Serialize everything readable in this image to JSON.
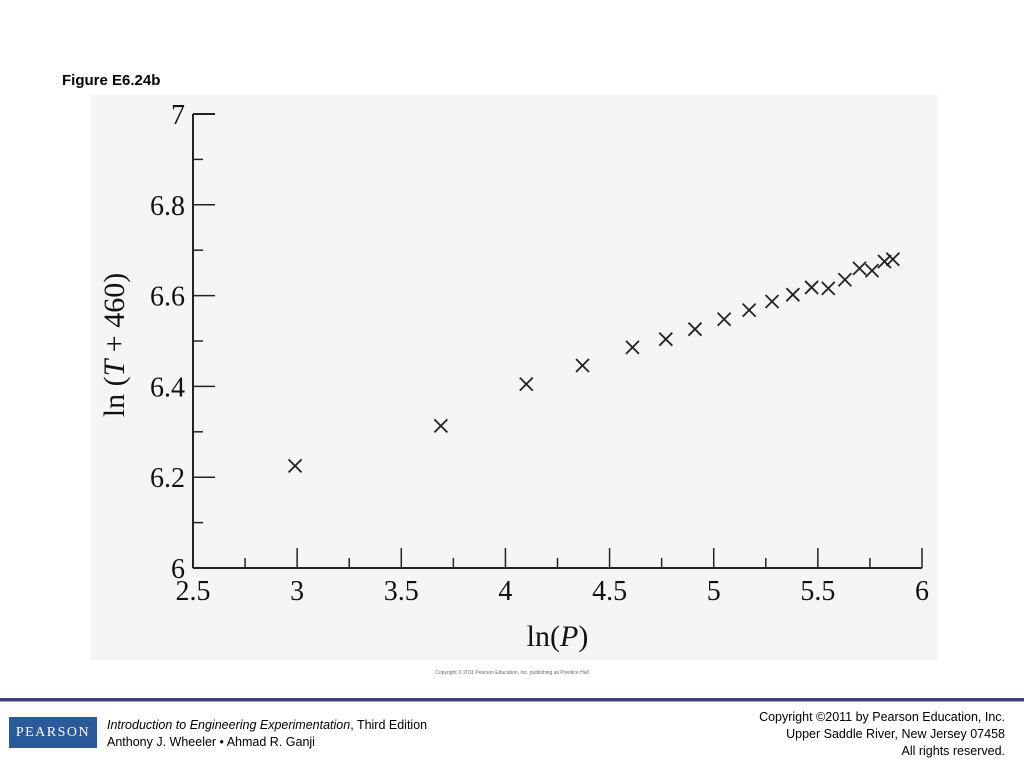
{
  "slide": {
    "title": "Figure E6.24b"
  },
  "figure_copyright": "Copyright © 2011 Pearson Education, Inc. publishing as Prentice Hall",
  "footer": {
    "logo_text": "PEARSON",
    "book_title": "Introduction to Engineering Experimentation",
    "edition": ", Third Edition",
    "authors": "Anthony J. Wheeler • Ahmad R. Ganji",
    "copyright_line": "Copyright ©2011 by Pearson Education, Inc.",
    "address_line": "Upper Saddle River, New Jersey 07458",
    "rights_line": "All rights reserved.",
    "brand_color": "#2b5a9a",
    "rule_color": "#3a3f7a"
  },
  "chart_data": {
    "type": "scatter",
    "title": "",
    "xlabel_prefix": "ln(",
    "xlabel_var": "P",
    "xlabel_suffix": ")",
    "ylabel_prefix": "ln (",
    "ylabel_var": "T",
    "ylabel_suffix": " + 460)",
    "xlim": [
      2.5,
      6
    ],
    "ylim": [
      6,
      7
    ],
    "xticks": [
      "2.5",
      "3",
      "3.5",
      "4",
      "4.5",
      "5",
      "5.5",
      "6"
    ],
    "yticks": [
      "6",
      "6.2",
      "6.4",
      "6.6",
      "6.8",
      "7"
    ],
    "marker": "x",
    "grid": false,
    "x": [
      2.99,
      3.69,
      4.1,
      4.37,
      4.61,
      4.77,
      4.91,
      5.05,
      5.17,
      5.28,
      5.38,
      5.47,
      5.55,
      5.63,
      5.7,
      5.76,
      5.82,
      5.86
    ],
    "y": [
      6.225,
      6.313,
      6.405,
      6.446,
      6.486,
      6.504,
      6.526,
      6.548,
      6.568,
      6.587,
      6.602,
      6.618,
      6.616,
      6.635,
      6.66,
      6.655,
      6.675,
      6.68
    ]
  }
}
